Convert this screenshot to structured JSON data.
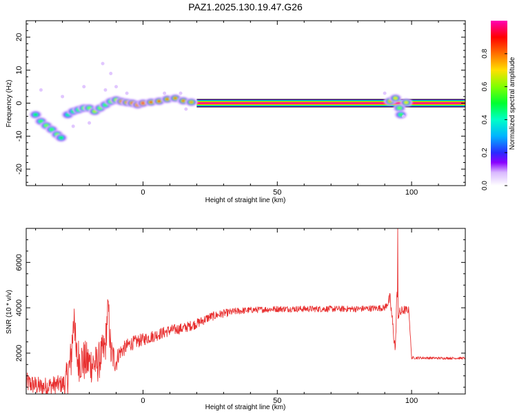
{
  "figure_title": "PAZ1.2025.130.19.47.G26",
  "colors": {
    "snr_line": "#e83030",
    "colormap": [
      "#ffffff",
      "#e9d6ff",
      "#8a00ff",
      "#2a2aff",
      "#00c8ff",
      "#00ff80",
      "#7dff00",
      "#ffd000",
      "#ff2a00",
      "#ff00b4"
    ]
  },
  "chart_data": [
    {
      "type": "heatmap",
      "xlabel": "Height of straight line (km)",
      "ylabel": "Frequency (Hz)",
      "xlim": [
        -43.5,
        120
      ],
      "ylim": [
        -25,
        25
      ],
      "xticks": [
        0,
        50,
        100
      ],
      "yticks": [
        -20,
        -10,
        0,
        10,
        20
      ],
      "ridge_points": [
        {
          "x": -40,
          "y": -3.5,
          "a": 0.5
        },
        {
          "x": -38,
          "y": -5.5,
          "a": 0.55
        },
        {
          "x": -36,
          "y": -6.8,
          "a": 0.6
        },
        {
          "x": -34,
          "y": -8.0,
          "a": 0.55
        },
        {
          "x": -32,
          "y": -9.5,
          "a": 0.6
        },
        {
          "x": -30.5,
          "y": -10.5,
          "a": 0.5
        },
        {
          "x": -28,
          "y": -3.5,
          "a": 0.45
        },
        {
          "x": -26,
          "y": -2.5,
          "a": 0.5
        },
        {
          "x": -24,
          "y": -2.0,
          "a": 0.55
        },
        {
          "x": -22,
          "y": -1.5,
          "a": 0.6
        },
        {
          "x": -20,
          "y": -1.5,
          "a": 0.6
        },
        {
          "x": -18,
          "y": -2.5,
          "a": 0.65
        },
        {
          "x": -16,
          "y": -1.5,
          "a": 0.6
        },
        {
          "x": -14,
          "y": -0.5,
          "a": 0.55
        },
        {
          "x": -12,
          "y": 0.5,
          "a": 0.6
        },
        {
          "x": -10,
          "y": 1.0,
          "a": 0.65
        },
        {
          "x": -8,
          "y": 0.5,
          "a": 0.9
        },
        {
          "x": -6,
          "y": 0.2,
          "a": 0.85
        },
        {
          "x": -4,
          "y": 0.0,
          "a": 0.9
        },
        {
          "x": -2,
          "y": -0.5,
          "a": 0.95
        },
        {
          "x": 0,
          "y": 0.0,
          "a": 0.95
        },
        {
          "x": 3,
          "y": 0.3,
          "a": 0.85
        },
        {
          "x": 6,
          "y": 0.6,
          "a": 0.85
        },
        {
          "x": 9,
          "y": 1.2,
          "a": 0.8
        },
        {
          "x": 12,
          "y": 1.5,
          "a": 0.8
        },
        {
          "x": 15,
          "y": 0.7,
          "a": 0.8
        },
        {
          "x": 18,
          "y": 0.3,
          "a": 0.75
        },
        {
          "x": 92,
          "y": 0.6,
          "a": 0.75
        },
        {
          "x": 94,
          "y": 1.5,
          "a": 0.7
        },
        {
          "x": 95.5,
          "y": -1.5,
          "a": 0.6
        },
        {
          "x": 96,
          "y": -3.5,
          "a": 0.55
        },
        {
          "x": 98,
          "y": 0.2,
          "a": 0.7
        }
      ],
      "band": {
        "x_start": 20,
        "x_end": 120,
        "y": 0,
        "value": 0.98
      },
      "colorbar": {
        "label": "Normalized spectral amplitude",
        "range": [
          0,
          1
        ],
        "ticks": [
          0.0,
          0.2,
          0.4,
          0.6,
          0.8
        ]
      }
    },
    {
      "type": "line",
      "xlabel": "Height of straight line (km)",
      "ylabel": "SNR (10 * v/v)",
      "xlim": [
        -43.5,
        120
      ],
      "ylim": [
        200,
        7500
      ],
      "xticks": [
        0,
        50,
        100
      ],
      "yticks": [
        2000,
        4000,
        6000
      ],
      "anchors": [
        [
          -43.5,
          700
        ],
        [
          -38,
          500
        ],
        [
          -33,
          600
        ],
        [
          -29,
          650
        ],
        [
          -27,
          1500
        ],
        [
          -25.5,
          3800
        ],
        [
          -25,
          1800
        ],
        [
          -21,
          1600
        ],
        [
          -17,
          1500
        ],
        [
          -14,
          2300
        ],
        [
          -13,
          4200
        ],
        [
          -12,
          2000
        ],
        [
          -10,
          1600
        ],
        [
          -9,
          2000
        ],
        [
          -5,
          2400
        ],
        [
          0,
          2600
        ],
        [
          5,
          2800
        ],
        [
          10,
          3000
        ],
        [
          15,
          3100
        ],
        [
          20,
          3300
        ],
        [
          25,
          3600
        ],
        [
          30,
          3750
        ],
        [
          35,
          3850
        ],
        [
          40,
          3900
        ],
        [
          50,
          3950
        ],
        [
          60,
          3950
        ],
        [
          70,
          3950
        ],
        [
          80,
          3950
        ],
        [
          90,
          4000
        ],
        [
          92,
          4400
        ],
        [
          93,
          3200
        ],
        [
          94,
          2100
        ],
        [
          94.5,
          4700
        ],
        [
          95,
          3700
        ],
        [
          96,
          3800
        ],
        [
          97,
          3900
        ],
        [
          99,
          3900
        ],
        [
          100,
          1800
        ],
        [
          110,
          1780
        ],
        [
          120,
          1780
        ]
      ],
      "noise": [
        [
          -43.5,
          450
        ],
        [
          -30,
          400
        ],
        [
          -27,
          1100
        ],
        [
          -20,
          900
        ],
        [
          -12,
          800
        ],
        [
          -9,
          350
        ],
        [
          0,
          280
        ],
        [
          20,
          220
        ],
        [
          40,
          140
        ],
        [
          90,
          140
        ],
        [
          93,
          350
        ],
        [
          99,
          150
        ],
        [
          100,
          60
        ],
        [
          120,
          50
        ]
      ],
      "spikes": [
        [
          94.8,
          7500
        ],
        [
          -13,
          4300
        ],
        [
          -25.6,
          3950
        ]
      ]
    }
  ]
}
